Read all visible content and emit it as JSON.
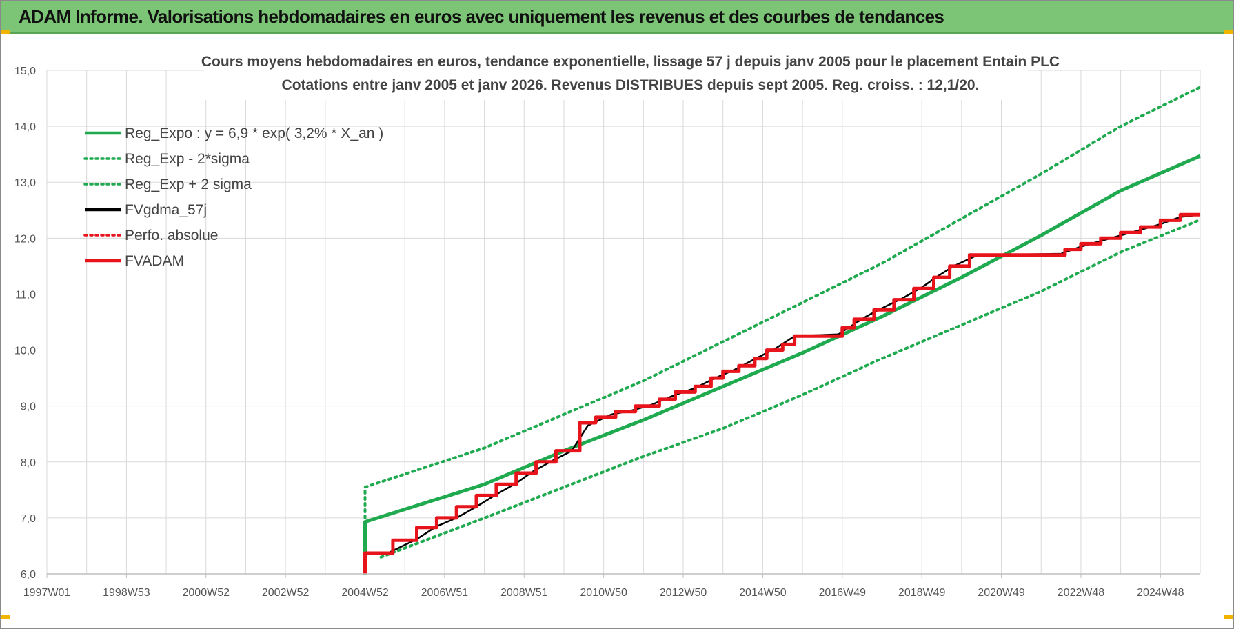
{
  "header": {
    "title": "ADAM Informe. Valorisations hebdomadaires en euros avec uniquement les revenus et des courbes de tendances"
  },
  "colors": {
    "header_bg": "#7cc576",
    "reg_green": "#1faa4f",
    "fv_black": "#000000",
    "adam_red": "#e8141b",
    "grid": "#d9d9d9"
  },
  "chart_data": {
    "type": "line",
    "title_lines": [
      "Cours moyens hebdomadaires en euros, tendance exponentielle, lissage 57 j depuis janv 2005  pour le placement Entain PLC",
      "Cotations entre janv 2005 et janv 2026. Revenus DISTRIBUES depuis sept 2005. Reg. croiss. : 12,1/20."
    ],
    "x_tick_labels": [
      "1997W01",
      "1998W53",
      "2000W52",
      "2002W52",
      "2004W52",
      "2006W51",
      "2008W51",
      "2010W50",
      "2012W50",
      "2014W50",
      "2016W49",
      "2018W49",
      "2020W49",
      "2022W48",
      "2024W48"
    ],
    "x_range": [
      1997.0,
      2026.0
    ],
    "y_range": [
      6.0,
      15.0
    ],
    "y_ticks": [
      "6,0",
      "7,0",
      "8,0",
      "9,0",
      "10,0",
      "11,0",
      "12,0",
      "13,0",
      "14,0",
      "15,0"
    ],
    "grid": true,
    "legend_position": "top-left",
    "regression": {
      "a": 6.9,
      "rate": 0.032,
      "start": 2005.0,
      "sigma_offset_start": 0.62
    },
    "series": [
      {
        "name": "Reg_Expo : y = 6,9 * exp( 3,2% *  X_an )",
        "style": "solid",
        "color": "#1faa4f",
        "width": 5,
        "points": [
          [
            2005.0,
            6.0
          ],
          [
            2005.0,
            6.93
          ],
          [
            2008.0,
            7.6
          ],
          [
            2010.0,
            8.2
          ],
          [
            2012.0,
            8.75
          ],
          [
            2014.0,
            9.35
          ],
          [
            2016.0,
            9.95
          ],
          [
            2018.0,
            10.6
          ],
          [
            2020.0,
            11.3
          ],
          [
            2022.0,
            12.05
          ],
          [
            2024.0,
            12.85
          ],
          [
            2026.0,
            13.47
          ]
        ]
      },
      {
        "name": "Reg_Exp - 2*sigma",
        "style": "dotted",
        "color": "#1faa4f",
        "width": 4,
        "points": [
          [
            2005.4,
            6.3
          ],
          [
            2008.0,
            7.0
          ],
          [
            2010.0,
            7.55
          ],
          [
            2012.0,
            8.1
          ],
          [
            2014.0,
            8.6
          ],
          [
            2016.0,
            9.2
          ],
          [
            2018.0,
            9.85
          ],
          [
            2020.0,
            10.45
          ],
          [
            2022.0,
            11.05
          ],
          [
            2024.0,
            11.75
          ],
          [
            2026.0,
            12.33
          ]
        ]
      },
      {
        "name": "Reg_Exp + 2 sigma",
        "style": "dotted",
        "color": "#1faa4f",
        "width": 4,
        "points": [
          [
            2005.0,
            6.0
          ],
          [
            2005.0,
            7.55
          ],
          [
            2008.0,
            8.25
          ],
          [
            2010.0,
            8.85
          ],
          [
            2012.0,
            9.45
          ],
          [
            2014.0,
            10.15
          ],
          [
            2016.0,
            10.85
          ],
          [
            2018.0,
            11.55
          ],
          [
            2020.0,
            12.35
          ],
          [
            2022.0,
            13.15
          ],
          [
            2024.0,
            14.0
          ],
          [
            2026.0,
            14.7
          ]
        ]
      },
      {
        "name": "FVgdma_57j",
        "style": "solid",
        "color": "#000000",
        "width": 2.5,
        "points": [
          [
            2005.0,
            6.0
          ],
          [
            2005.0,
            6.38
          ],
          [
            2005.6,
            6.38
          ],
          [
            2006.3,
            6.62
          ],
          [
            2006.8,
            6.85
          ],
          [
            2007.3,
            7.0
          ],
          [
            2007.8,
            7.2
          ],
          [
            2008.3,
            7.42
          ],
          [
            2008.8,
            7.62
          ],
          [
            2009.2,
            7.82
          ],
          [
            2009.7,
            8.02
          ],
          [
            2010.2,
            8.2
          ],
          [
            2010.6,
            8.65
          ],
          [
            2011.2,
            8.85
          ],
          [
            2011.7,
            8.92
          ],
          [
            2012.2,
            9.02
          ],
          [
            2012.8,
            9.2
          ],
          [
            2013.3,
            9.32
          ],
          [
            2013.8,
            9.5
          ],
          [
            2014.3,
            9.65
          ],
          [
            2014.8,
            9.84
          ],
          [
            2015.3,
            10.02
          ],
          [
            2015.8,
            10.25
          ],
          [
            2016.9,
            10.28
          ],
          [
            2017.2,
            10.42
          ],
          [
            2017.6,
            10.6
          ],
          [
            2018.0,
            10.75
          ],
          [
            2018.5,
            10.92
          ],
          [
            2019.0,
            11.12
          ],
          [
            2019.4,
            11.32
          ],
          [
            2019.8,
            11.5
          ],
          [
            2020.4,
            11.7
          ],
          [
            2022.5,
            11.72
          ],
          [
            2023.0,
            11.85
          ],
          [
            2023.5,
            11.95
          ],
          [
            2024.0,
            12.05
          ],
          [
            2024.5,
            12.15
          ],
          [
            2025.0,
            12.25
          ],
          [
            2025.5,
            12.38
          ],
          [
            2026.0,
            12.42
          ]
        ]
      },
      {
        "name": "Perfo. absolue",
        "style": "dotted",
        "color": "#e8141b",
        "width": 3,
        "points": []
      },
      {
        "name": "FVADAM",
        "style": "step",
        "color": "#e8141b",
        "width": 5,
        "points": [
          [
            2005.0,
            6.0
          ],
          [
            2005.0,
            6.37
          ],
          [
            2005.7,
            6.37
          ],
          [
            2005.7,
            6.6
          ],
          [
            2006.3,
            6.6
          ],
          [
            2006.3,
            6.83
          ],
          [
            2006.8,
            6.83
          ],
          [
            2006.8,
            7.0
          ],
          [
            2007.3,
            7.0
          ],
          [
            2007.3,
            7.2
          ],
          [
            2007.8,
            7.2
          ],
          [
            2007.8,
            7.4
          ],
          [
            2008.3,
            7.4
          ],
          [
            2008.3,
            7.6
          ],
          [
            2008.8,
            7.6
          ],
          [
            2008.8,
            7.8
          ],
          [
            2009.3,
            7.8
          ],
          [
            2009.3,
            8.0
          ],
          [
            2009.8,
            8.0
          ],
          [
            2009.8,
            8.2
          ],
          [
            2010.4,
            8.2
          ],
          [
            2010.4,
            8.7
          ],
          [
            2010.8,
            8.7
          ],
          [
            2010.8,
            8.8
          ],
          [
            2011.3,
            8.8
          ],
          [
            2011.3,
            8.9
          ],
          [
            2011.8,
            8.9
          ],
          [
            2011.8,
            9.0
          ],
          [
            2012.4,
            9.0
          ],
          [
            2012.4,
            9.12
          ],
          [
            2012.8,
            9.12
          ],
          [
            2012.8,
            9.25
          ],
          [
            2013.3,
            9.25
          ],
          [
            2013.3,
            9.35
          ],
          [
            2013.7,
            9.35
          ],
          [
            2013.7,
            9.5
          ],
          [
            2014.0,
            9.5
          ],
          [
            2014.0,
            9.62
          ],
          [
            2014.4,
            9.62
          ],
          [
            2014.4,
            9.72
          ],
          [
            2014.8,
            9.72
          ],
          [
            2014.8,
            9.85
          ],
          [
            2015.1,
            9.85
          ],
          [
            2015.1,
            10.0
          ],
          [
            2015.5,
            10.0
          ],
          [
            2015.5,
            10.1
          ],
          [
            2015.8,
            10.1
          ],
          [
            2015.8,
            10.25
          ],
          [
            2017.0,
            10.25
          ],
          [
            2017.0,
            10.4
          ],
          [
            2017.3,
            10.4
          ],
          [
            2017.3,
            10.55
          ],
          [
            2017.8,
            10.55
          ],
          [
            2017.8,
            10.72
          ],
          [
            2018.3,
            10.72
          ],
          [
            2018.3,
            10.9
          ],
          [
            2018.8,
            10.9
          ],
          [
            2018.8,
            11.1
          ],
          [
            2019.3,
            11.1
          ],
          [
            2019.3,
            11.3
          ],
          [
            2019.7,
            11.3
          ],
          [
            2019.7,
            11.5
          ],
          [
            2020.2,
            11.5
          ],
          [
            2020.2,
            11.7
          ],
          [
            2022.6,
            11.7
          ],
          [
            2022.6,
            11.8
          ],
          [
            2023.0,
            11.8
          ],
          [
            2023.0,
            11.9
          ],
          [
            2023.5,
            11.9
          ],
          [
            2023.5,
            12.0
          ],
          [
            2024.0,
            12.0
          ],
          [
            2024.0,
            12.1
          ],
          [
            2024.5,
            12.1
          ],
          [
            2024.5,
            12.2
          ],
          [
            2025.0,
            12.2
          ],
          [
            2025.0,
            12.32
          ],
          [
            2025.5,
            12.32
          ],
          [
            2025.5,
            12.42
          ],
          [
            2026.0,
            12.42
          ]
        ]
      }
    ]
  }
}
